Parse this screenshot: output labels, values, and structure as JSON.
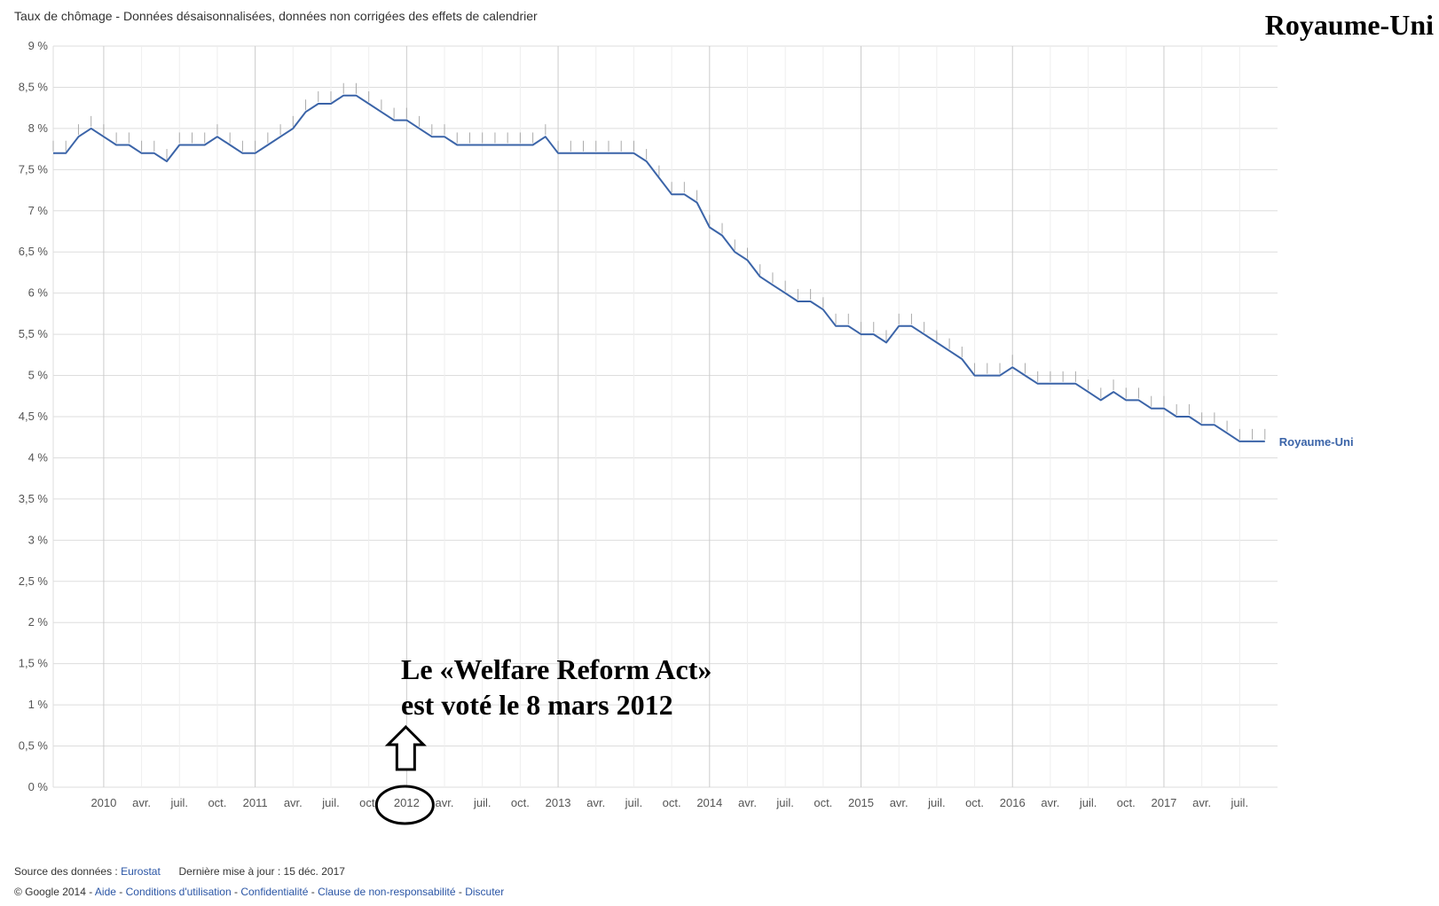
{
  "title": "Taux de chômage - Données désaisonnalisées, données non corrigées des effets de calendrier",
  "country_title": "Royaume-Uni",
  "annotation": {
    "line1": "Le «Welfare Reform Act»",
    "line2": "est voté le 8 mars 2012"
  },
  "footer": {
    "source_label": "Source des données :",
    "source_link": "Eurostat",
    "updated": "Dernière mise à jour : 15 déc. 2017",
    "copyright": "© Google 2014 -",
    "links": [
      "Aide",
      "Conditions d'utilisation",
      "Confidentialité",
      "Clause de non-responsabilité",
      "Discuter"
    ],
    "separator": "-"
  },
  "colors": {
    "series": "#3b64a8",
    "grid": "#dddddd",
    "minor_grid": "#eeeeee",
    "tick_mark": "#aaaaaa",
    "axis_text": "#555555"
  },
  "chart_data": {
    "type": "line",
    "x_start": "2009-09",
    "x_end": "2017-10",
    "x_tick_labels": [
      "2010",
      "avr.",
      "juil.",
      "oct.",
      "2011",
      "avr.",
      "juil.",
      "oct.",
      "2012",
      "avr.",
      "juil.",
      "oct.",
      "2013",
      "avr.",
      "juil.",
      "oct.",
      "2014",
      "avr.",
      "juil.",
      "oct.",
      "2015",
      "avr.",
      "juil.",
      "oct.",
      "2016",
      "avr.",
      "juil.",
      "oct.",
      "2017",
      "avr.",
      "juil."
    ],
    "y_tick_labels": [
      "0 %",
      "0,5 %",
      "1 %",
      "1,5 %",
      "2 %",
      "2,5 %",
      "3 %",
      "3,5 %",
      "4 %",
      "4,5 %",
      "5 %",
      "5,5 %",
      "6 %",
      "6,5 %",
      "7 %",
      "7,5 %",
      "8 %",
      "8,5 %",
      "9 %"
    ],
    "ylim": [
      0,
      9
    ],
    "grid": true,
    "legend_position": "right",
    "series": [
      {
        "name": "Royaume-Uni",
        "values": [
          7.7,
          7.7,
          7.9,
          8.0,
          7.9,
          7.8,
          7.8,
          7.7,
          7.7,
          7.6,
          7.8,
          7.8,
          7.8,
          7.9,
          7.8,
          7.7,
          7.7,
          7.8,
          7.9,
          8.0,
          8.2,
          8.3,
          8.3,
          8.4,
          8.4,
          8.3,
          8.2,
          8.1,
          8.1,
          8.0,
          7.9,
          7.9,
          7.8,
          7.8,
          7.8,
          7.8,
          7.8,
          7.8,
          7.8,
          7.9,
          7.7,
          7.7,
          7.7,
          7.7,
          7.7,
          7.7,
          7.7,
          7.6,
          7.4,
          7.2,
          7.2,
          7.1,
          6.8,
          6.7,
          6.5,
          6.4,
          6.2,
          6.1,
          6.0,
          5.9,
          5.9,
          5.8,
          5.6,
          5.6,
          5.5,
          5.5,
          5.4,
          5.6,
          5.6,
          5.5,
          5.4,
          5.3,
          5.2,
          5.0,
          5.0,
          5.0,
          5.1,
          5.0,
          4.9,
          4.9,
          4.9,
          4.9,
          4.8,
          4.7,
          4.8,
          4.7,
          4.7,
          4.6,
          4.6,
          4.5,
          4.5,
          4.4,
          4.4,
          4.3,
          4.2,
          4.2,
          4.2
        ]
      }
    ]
  }
}
